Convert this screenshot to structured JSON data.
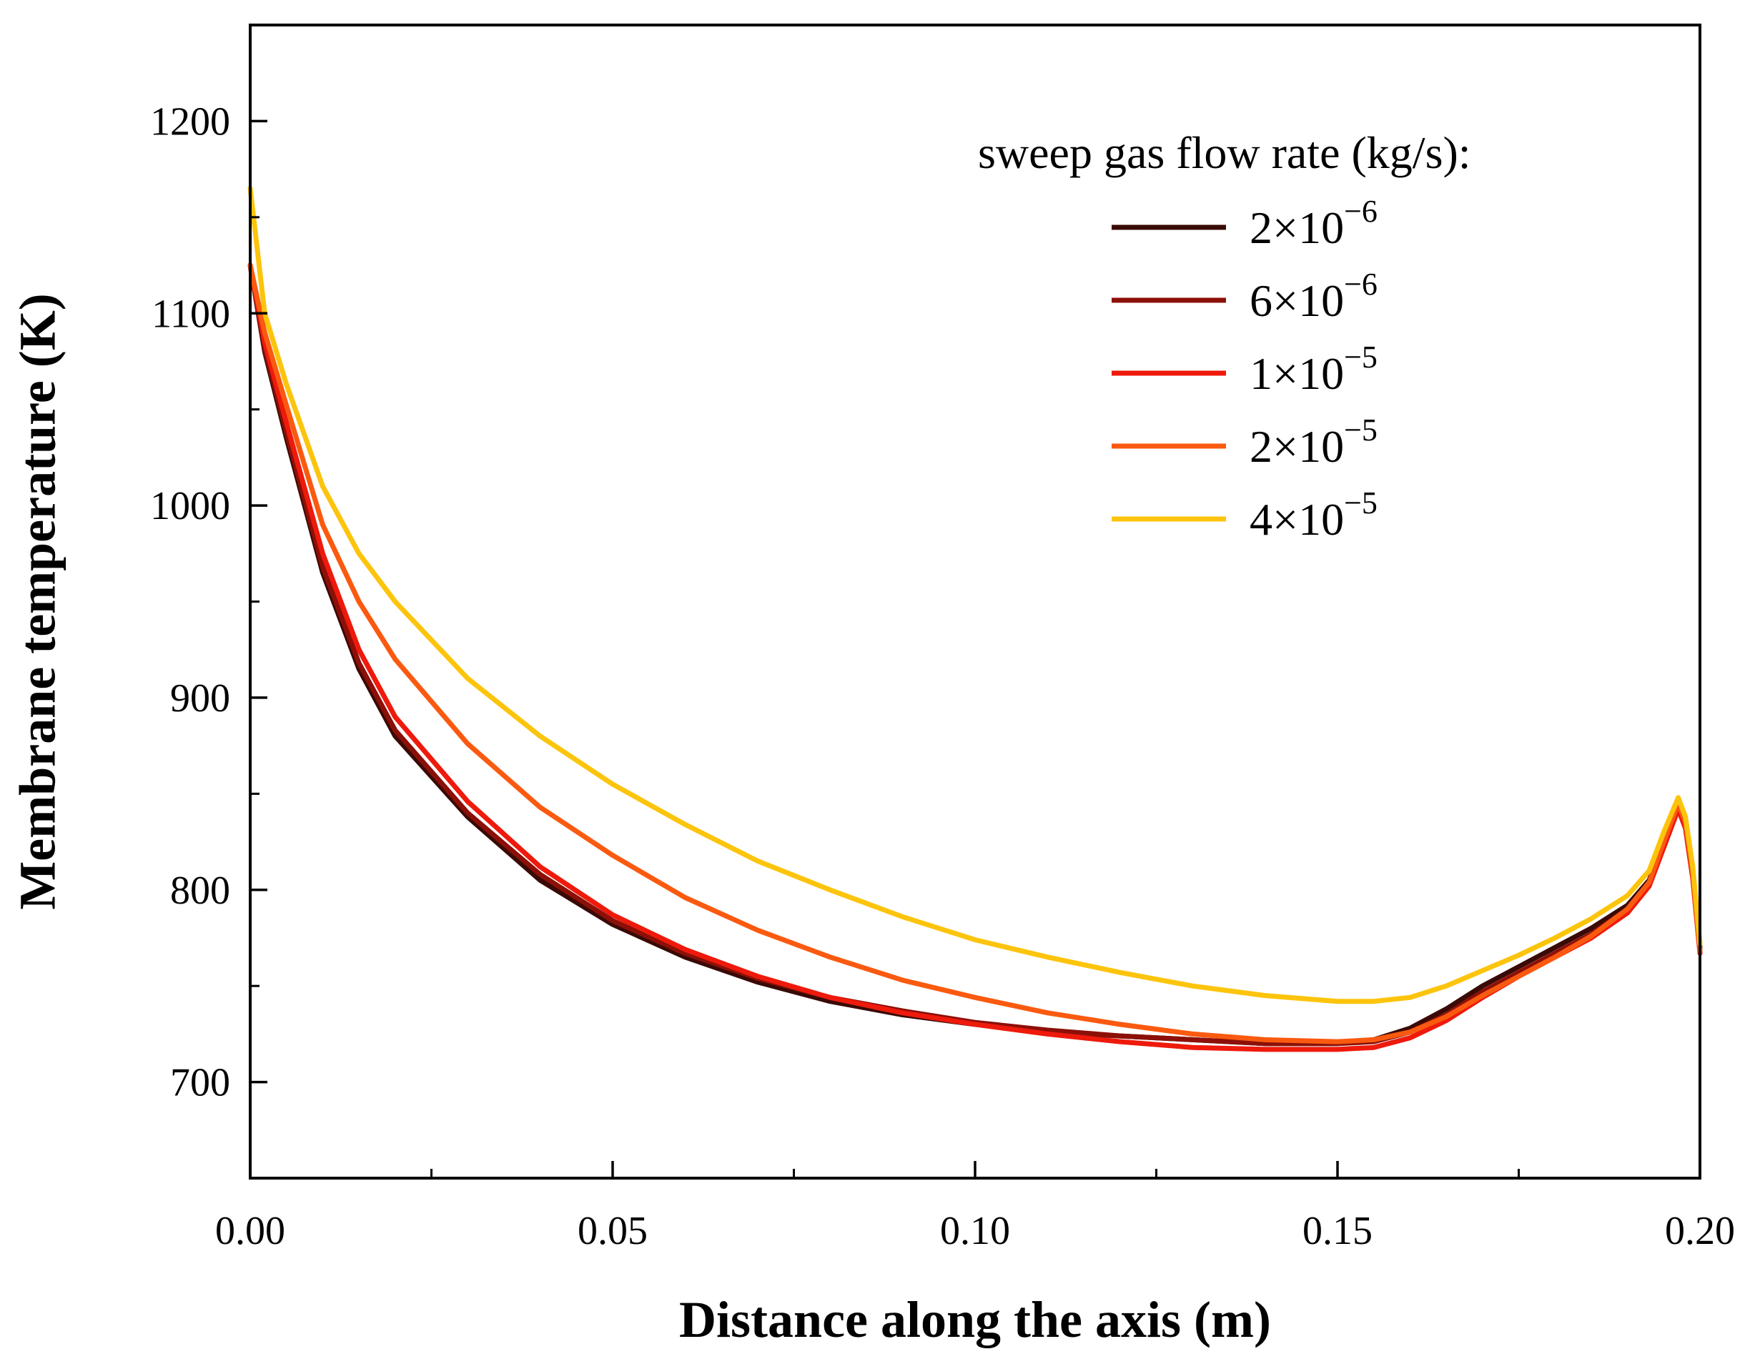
{
  "chart_data": {
    "type": "line",
    "title": "",
    "xlabel": "Distance along the axis (m)",
    "ylabel": "Membrane temperature (K)",
    "xlim": [
      0.0,
      0.2
    ],
    "ylim": [
      650,
      1250
    ],
    "x_ticks": [
      "0.00",
      "0.05",
      "0.10",
      "0.15",
      "0.20"
    ],
    "y_ticks": [
      "700",
      "800",
      "900",
      "1000",
      "1100",
      "1200"
    ],
    "grid": false,
    "legend": {
      "title": "sweep gas flow rate (kg/s):",
      "placement": "top-right"
    },
    "series": [
      {
        "name": "2×10⁻⁶",
        "label_base": "2×10",
        "label_exp": "−6",
        "color": "#3a0a06",
        "x": [
          0,
          0.002,
          0.005,
          0.01,
          0.015,
          0.02,
          0.03,
          0.04,
          0.05,
          0.06,
          0.07,
          0.08,
          0.09,
          0.1,
          0.11,
          0.12,
          0.13,
          0.14,
          0.15,
          0.155,
          0.16,
          0.165,
          0.17,
          0.175,
          0.18,
          0.185,
          0.19,
          0.193,
          0.195,
          0.197,
          0.198,
          0.199,
          0.2
        ],
        "y": [
          1125,
          1080,
          1035,
          965,
          915,
          880,
          838,
          805,
          782,
          765,
          752,
          742,
          735,
          730,
          726,
          724,
          722,
          720,
          720,
          722,
          728,
          738,
          750,
          760,
          770,
          780,
          792,
          805,
          825,
          845,
          835,
          810,
          770
        ]
      },
      {
        "name": "6×10⁻⁶",
        "label_base": "6×10",
        "label_exp": "−6",
        "color": "#8c1008",
        "x": [
          0,
          0.002,
          0.005,
          0.01,
          0.015,
          0.02,
          0.03,
          0.04,
          0.05,
          0.06,
          0.07,
          0.08,
          0.09,
          0.1,
          0.11,
          0.12,
          0.13,
          0.14,
          0.15,
          0.155,
          0.16,
          0.165,
          0.17,
          0.175,
          0.18,
          0.185,
          0.19,
          0.193,
          0.195,
          0.197,
          0.198,
          0.199,
          0.2
        ],
        "y": [
          1125,
          1082,
          1038,
          968,
          918,
          883,
          840,
          808,
          784,
          767,
          754,
          744,
          737,
          731,
          727,
          724,
          722,
          720,
          720,
          721,
          726,
          735,
          747,
          757,
          767,
          777,
          790,
          803,
          824,
          844,
          834,
          808,
          768
        ]
      },
      {
        "name": "1×10⁻⁵",
        "label_base": "1×10",
        "label_exp": "−5",
        "color": "#ee1a0c",
        "x": [
          0,
          0.002,
          0.005,
          0.01,
          0.015,
          0.02,
          0.03,
          0.04,
          0.05,
          0.06,
          0.07,
          0.08,
          0.09,
          0.1,
          0.11,
          0.12,
          0.13,
          0.14,
          0.15,
          0.155,
          0.16,
          0.165,
          0.17,
          0.175,
          0.18,
          0.185,
          0.19,
          0.193,
          0.195,
          0.197,
          0.198,
          0.199,
          0.2
        ],
        "y": [
          1125,
          1085,
          1043,
          975,
          925,
          890,
          846,
          812,
          787,
          769,
          755,
          744,
          736,
          730,
          725,
          721,
          718,
          717,
          717,
          718,
          723,
          732,
          744,
          755,
          765,
          775,
          788,
          802,
          822,
          842,
          832,
          806,
          767
        ]
      },
      {
        "name": "2×10⁻⁵",
        "label_base": "2×10",
        "label_exp": "−5",
        "color": "#fa5a10",
        "x": [
          0,
          0.002,
          0.005,
          0.01,
          0.015,
          0.02,
          0.03,
          0.04,
          0.05,
          0.06,
          0.07,
          0.08,
          0.09,
          0.1,
          0.11,
          0.12,
          0.13,
          0.14,
          0.15,
          0.155,
          0.16,
          0.165,
          0.17,
          0.175,
          0.18,
          0.185,
          0.19,
          0.193,
          0.195,
          0.197,
          0.198,
          0.199,
          0.2
        ],
        "y": [
          1125,
          1090,
          1052,
          990,
          950,
          920,
          876,
          843,
          818,
          796,
          779,
          765,
          753,
          744,
          736,
          730,
          725,
          722,
          721,
          722,
          726,
          734,
          745,
          755,
          765,
          776,
          790,
          804,
          825,
          845,
          835,
          809,
          768
        ]
      },
      {
        "name": "4×10⁻⁵",
        "label_base": "4×10",
        "label_exp": "−5",
        "color": "#fcc40c",
        "x": [
          0,
          0.002,
          0.005,
          0.01,
          0.015,
          0.02,
          0.03,
          0.04,
          0.05,
          0.06,
          0.07,
          0.08,
          0.09,
          0.1,
          0.11,
          0.12,
          0.13,
          0.14,
          0.15,
          0.155,
          0.16,
          0.165,
          0.17,
          0.175,
          0.18,
          0.185,
          0.19,
          0.193,
          0.195,
          0.197,
          0.198,
          0.199,
          0.2
        ],
        "y": [
          1165,
          1100,
          1063,
          1010,
          975,
          950,
          910,
          880,
          855,
          834,
          815,
          800,
          786,
          774,
          765,
          757,
          750,
          745,
          742,
          742,
          744,
          750,
          758,
          766,
          775,
          785,
          797,
          810,
          830,
          848,
          838,
          812,
          772
        ]
      }
    ]
  }
}
